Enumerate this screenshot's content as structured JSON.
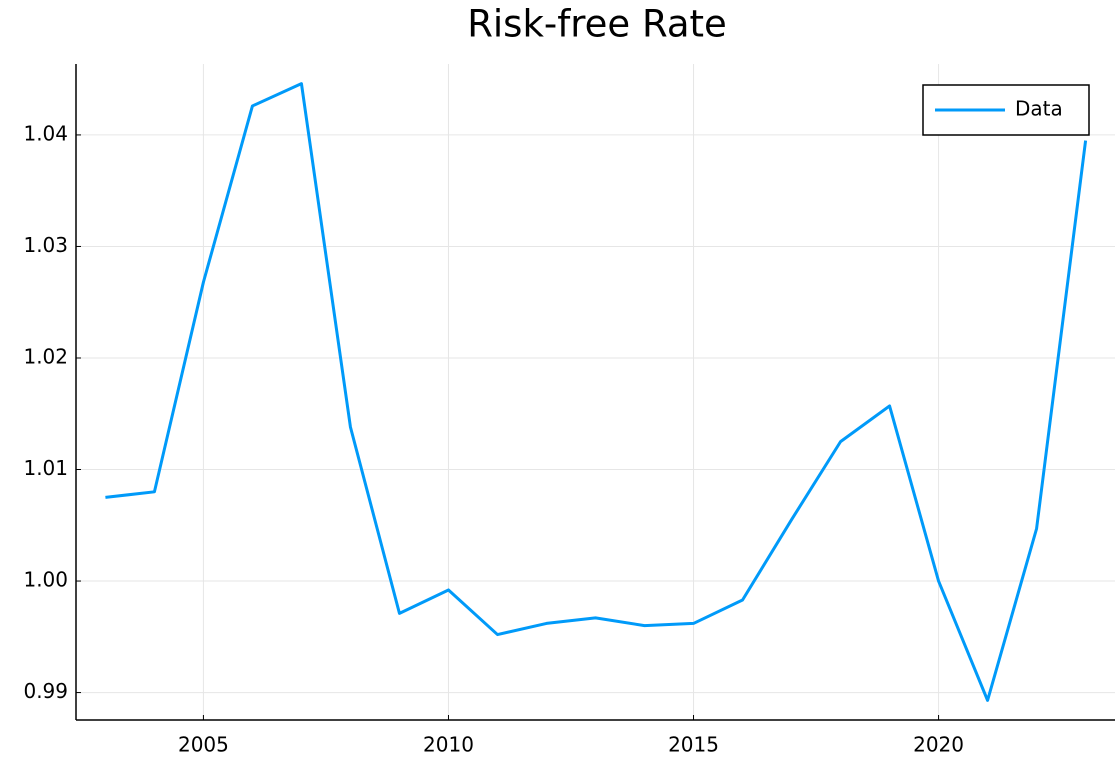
{
  "chart_data": {
    "type": "line",
    "title": "Risk-free Rate",
    "x": [
      2003,
      2004,
      2005,
      2006,
      2007,
      2008,
      2009,
      2010,
      2011,
      2012,
      2013,
      2014,
      2015,
      2016,
      2017,
      2018,
      2019,
      2020,
      2021,
      2022,
      2023
    ],
    "series": [
      {
        "name": "Data",
        "color": "#009af9",
        "values": [
          1.0075,
          1.008,
          1.0268,
          1.0426,
          1.0446,
          1.0138,
          0.9971,
          0.9992,
          0.9952,
          0.9962,
          0.9967,
          0.996,
          0.9962,
          0.9983,
          1.0055,
          1.0125,
          1.0157,
          1.0,
          0.9893,
          1.0047,
          1.0395
        ]
      }
    ],
    "xlim": [
      2002.4,
      2023.6
    ],
    "xticks": [
      2005,
      2010,
      2015,
      2020
    ],
    "ylim": [
      0.98754,
      1.04636
    ],
    "yticks": [
      0.99,
      {
        "value": 1,
        "label": "1.00"
      },
      1.01,
      1.02,
      1.03,
      1.04
    ],
    "grid": true,
    "legend": "top-right"
  }
}
